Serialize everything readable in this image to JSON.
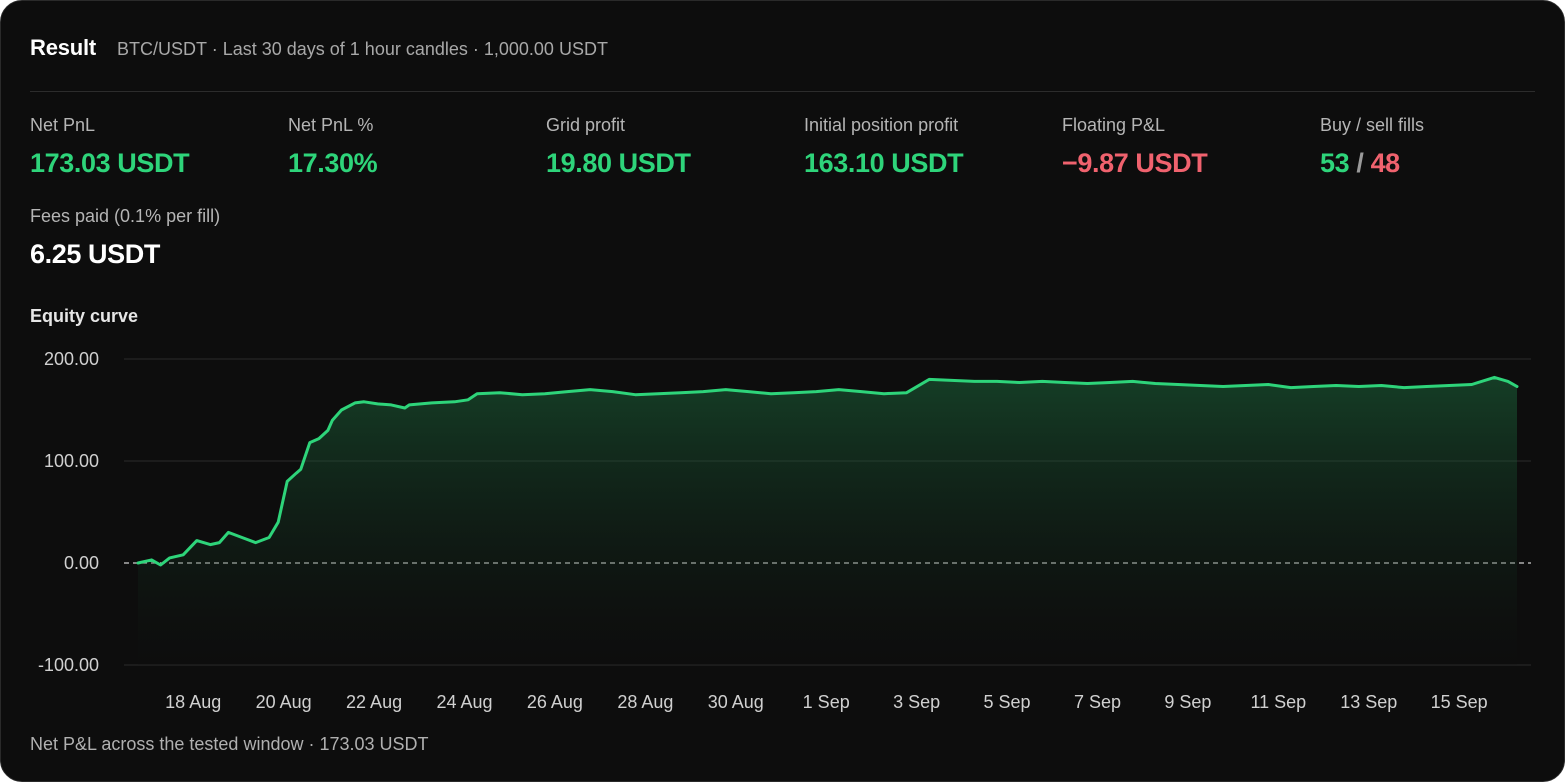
{
  "header": {
    "title": "Result",
    "subtitle": "BTC/USDT · Last 30 days of 1 hour candles · 1,000.00 USDT"
  },
  "stats": {
    "net_pnl": {
      "label": "Net PnL",
      "value": "173.03 USDT"
    },
    "net_pnl_pct": {
      "label": "Net PnL %",
      "value": "17.30%"
    },
    "grid_profit": {
      "label": "Grid profit",
      "value": "19.80 USDT"
    },
    "initial_position_profit": {
      "label": "Initial position profit",
      "value": "163.10 USDT"
    },
    "floating_pnl": {
      "label": "Floating P&L",
      "value": "−9.87 USDT"
    },
    "fills": {
      "label": "Buy / sell fills",
      "buy": "53",
      "separator": "/",
      "sell": "48"
    },
    "fees": {
      "label": "Fees paid (0.1% per fill)",
      "value": "6.25 USDT"
    }
  },
  "colors": {
    "positive": "#2ed47a",
    "negative": "#f0626e",
    "background": "#0d0d0d",
    "grid": "#2c2c2c"
  },
  "equity": {
    "title": "Equity curve",
    "footer": "Net P&L across the tested window · 173.03 USDT"
  },
  "chart_data": {
    "type": "area",
    "title": "Equity curve",
    "xlabel": "",
    "ylabel": "",
    "ylim": [
      -100,
      200
    ],
    "yticks": [
      200,
      100,
      0,
      -100
    ],
    "ytick_labels": [
      "200.00",
      "100.00",
      "0.00",
      "-100.00"
    ],
    "xlim": [
      0,
      30.5
    ],
    "xticks": [
      1,
      3,
      5,
      7,
      9,
      11,
      13,
      15,
      17,
      19,
      21,
      23,
      25,
      27,
      29,
      31
    ],
    "xtick_labels": [
      "18 Aug",
      "20 Aug",
      "22 Aug",
      "24 Aug",
      "26 Aug",
      "28 Aug",
      "30 Aug",
      "1 Sep",
      "3 Sep",
      "5 Sep",
      "7 Sep",
      "9 Sep",
      "11 Sep",
      "13 Sep",
      "15 Sep"
    ],
    "grid": true,
    "zero_line": "dashed",
    "series": [
      {
        "color": "#2ed47a",
        "x": [
          0,
          0.3,
          0.5,
          0.7,
          1.0,
          1.3,
          1.6,
          1.8,
          2.0,
          2.3,
          2.6,
          2.9,
          3.1,
          3.3,
          3.5,
          3.6,
          3.8,
          4.0,
          4.2,
          4.3,
          4.5,
          4.8,
          5.0,
          5.3,
          5.6,
          5.9,
          6.0,
          6.5,
          7.0,
          7.3,
          7.5,
          8.0,
          8.5,
          9.0,
          9.5,
          10.0,
          10.5,
          11.0,
          11.5,
          12.0,
          12.5,
          13.0,
          13.5,
          14.0,
          14.5,
          15.0,
          15.5,
          16.0,
          16.5,
          17.0,
          17.5,
          18.0,
          18.5,
          19.0,
          19.5,
          20.0,
          20.5,
          21.0,
          21.5,
          22.0,
          22.5,
          23.0,
          23.5,
          24.0,
          24.5,
          25.0,
          25.5,
          26.0,
          26.5,
          27.0,
          27.5,
          28.0,
          28.5,
          29.0,
          29.5,
          30.0,
          30.3,
          30.5
        ],
        "y": [
          0,
          3,
          -2,
          5,
          8,
          22,
          18,
          20,
          30,
          25,
          20,
          25,
          40,
          80,
          88,
          92,
          118,
          122,
          130,
          140,
          150,
          157,
          158,
          156,
          155,
          152,
          155,
          157,
          158,
          160,
          166,
          167,
          165,
          166,
          168,
          170,
          168,
          165,
          166,
          167,
          168,
          170,
          168,
          166,
          167,
          168,
          170,
          168,
          166,
          167,
          180,
          179,
          178,
          178,
          177,
          178,
          177,
          176,
          177,
          178,
          176,
          175,
          174,
          173,
          174,
          175,
          172,
          173,
          174,
          173,
          174,
          172,
          173,
          174,
          175,
          182,
          178,
          173
        ]
      }
    ]
  }
}
